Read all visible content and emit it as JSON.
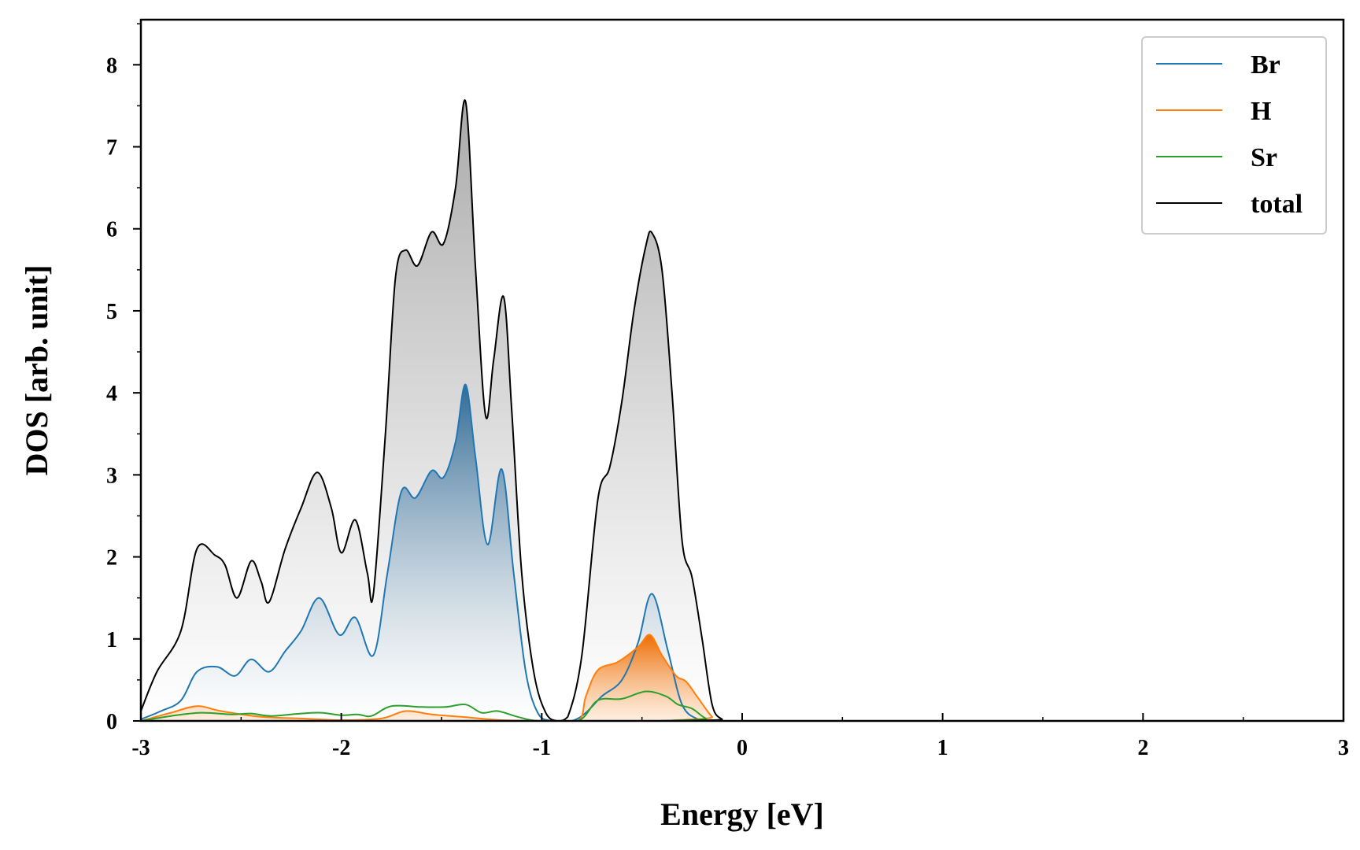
{
  "chart_data": {
    "type": "line",
    "xlabel": "Energy [eV]",
    "ylabel": "DOS [arb. unit]",
    "xlim": [
      -3,
      3
    ],
    "ylim": [
      0,
      8.55
    ],
    "x_ticks": [
      -3,
      -2,
      -1,
      0,
      1,
      2,
      3
    ],
    "x_tick_labels": [
      "-3",
      "-2",
      "-1",
      "0",
      "1",
      "2",
      "3"
    ],
    "y_ticks": [
      0,
      1,
      2,
      3,
      4,
      5,
      6,
      7,
      8
    ],
    "y_tick_labels": [
      "0",
      "1",
      "2",
      "3",
      "4",
      "5",
      "6",
      "7",
      "8"
    ],
    "grid": false,
    "legend_position": "top-right",
    "series": [
      {
        "name": "Br",
        "color": "#1f77b4",
        "fill": true,
        "points": [
          [
            -3.0,
            0.02
          ],
          [
            -2.9,
            0.12
          ],
          [
            -2.8,
            0.25
          ],
          [
            -2.72,
            0.6
          ],
          [
            -2.62,
            0.66
          ],
          [
            -2.53,
            0.55
          ],
          [
            -2.45,
            0.75
          ],
          [
            -2.36,
            0.6
          ],
          [
            -2.28,
            0.85
          ],
          [
            -2.2,
            1.1
          ],
          [
            -2.11,
            1.5
          ],
          [
            -2.01,
            1.05
          ],
          [
            -1.93,
            1.26
          ],
          [
            -1.84,
            0.8
          ],
          [
            -1.77,
            1.8
          ],
          [
            -1.7,
            2.8
          ],
          [
            -1.63,
            2.72
          ],
          [
            -1.55,
            3.05
          ],
          [
            -1.49,
            2.97
          ],
          [
            -1.43,
            3.4
          ],
          [
            -1.38,
            4.1
          ],
          [
            -1.33,
            3.2
          ],
          [
            -1.27,
            2.15
          ],
          [
            -1.2,
            3.07
          ],
          [
            -1.14,
            1.8
          ],
          [
            -1.08,
            0.6
          ],
          [
            -1.02,
            0.1
          ],
          [
            -0.95,
            0.0
          ],
          [
            -0.85,
            0.0
          ],
          [
            -0.78,
            0.1
          ],
          [
            -0.7,
            0.3
          ],
          [
            -0.6,
            0.5
          ],
          [
            -0.52,
            0.95
          ],
          [
            -0.45,
            1.55
          ],
          [
            -0.37,
            0.85
          ],
          [
            -0.3,
            0.2
          ],
          [
            -0.22,
            0.02
          ],
          [
            -0.15,
            0.0
          ],
          [
            3.0,
            0.0
          ]
        ]
      },
      {
        "name": "H",
        "color": "#ff7f0e",
        "fill": true,
        "points": [
          [
            -3.0,
            0.0
          ],
          [
            -2.85,
            0.1
          ],
          [
            -2.72,
            0.18
          ],
          [
            -2.6,
            0.12
          ],
          [
            -2.4,
            0.05
          ],
          [
            -2.2,
            0.03
          ],
          [
            -2.0,
            0.01
          ],
          [
            -1.8,
            0.03
          ],
          [
            -1.68,
            0.12
          ],
          [
            -1.55,
            0.08
          ],
          [
            -1.4,
            0.05
          ],
          [
            -1.2,
            0.01
          ],
          [
            -1.0,
            0.0
          ],
          [
            -0.82,
            0.0
          ],
          [
            -0.78,
            0.3
          ],
          [
            -0.72,
            0.62
          ],
          [
            -0.62,
            0.72
          ],
          [
            -0.52,
            0.9
          ],
          [
            -0.46,
            1.05
          ],
          [
            -0.4,
            0.8
          ],
          [
            -0.33,
            0.55
          ],
          [
            -0.28,
            0.48
          ],
          [
            -0.22,
            0.28
          ],
          [
            -0.15,
            0.05
          ],
          [
            -0.1,
            0.0
          ],
          [
            3.0,
            0.0
          ]
        ]
      },
      {
        "name": "Sr",
        "color": "#2ca02c",
        "fill": false,
        "points": [
          [
            -3.0,
            0.0
          ],
          [
            -2.85,
            0.06
          ],
          [
            -2.7,
            0.1
          ],
          [
            -2.55,
            0.08
          ],
          [
            -2.45,
            0.09
          ],
          [
            -2.35,
            0.06
          ],
          [
            -2.2,
            0.09
          ],
          [
            -2.1,
            0.1
          ],
          [
            -2.0,
            0.07
          ],
          [
            -1.92,
            0.08
          ],
          [
            -1.85,
            0.06
          ],
          [
            -1.75,
            0.18
          ],
          [
            -1.6,
            0.17
          ],
          [
            -1.48,
            0.17
          ],
          [
            -1.38,
            0.2
          ],
          [
            -1.3,
            0.1
          ],
          [
            -1.22,
            0.12
          ],
          [
            -1.12,
            0.05
          ],
          [
            -1.02,
            0.0
          ],
          [
            -0.82,
            0.0
          ],
          [
            -0.72,
            0.25
          ],
          [
            -0.6,
            0.27
          ],
          [
            -0.48,
            0.36
          ],
          [
            -0.38,
            0.3
          ],
          [
            -0.32,
            0.2
          ],
          [
            -0.25,
            0.15
          ],
          [
            -0.18,
            0.03
          ],
          [
            -0.1,
            0.0
          ],
          [
            3.0,
            0.0
          ]
        ]
      },
      {
        "name": "total",
        "color": "#000000",
        "fill": true,
        "points": [
          [
            -3.0,
            0.12
          ],
          [
            -2.92,
            0.6
          ],
          [
            -2.8,
            1.1
          ],
          [
            -2.72,
            2.1
          ],
          [
            -2.63,
            2.02
          ],
          [
            -2.58,
            1.9
          ],
          [
            -2.52,
            1.5
          ],
          [
            -2.45,
            1.95
          ],
          [
            -2.4,
            1.7
          ],
          [
            -2.36,
            1.45
          ],
          [
            -2.28,
            2.1
          ],
          [
            -2.2,
            2.6
          ],
          [
            -2.12,
            3.03
          ],
          [
            -2.05,
            2.6
          ],
          [
            -2.0,
            2.05
          ],
          [
            -1.93,
            2.45
          ],
          [
            -1.87,
            1.8
          ],
          [
            -1.84,
            1.55
          ],
          [
            -1.78,
            3.5
          ],
          [
            -1.73,
            5.4
          ],
          [
            -1.68,
            5.74
          ],
          [
            -1.62,
            5.55
          ],
          [
            -1.55,
            5.96
          ],
          [
            -1.49,
            5.82
          ],
          [
            -1.43,
            6.5
          ],
          [
            -1.38,
            7.55
          ],
          [
            -1.33,
            5.5
          ],
          [
            -1.28,
            3.72
          ],
          [
            -1.24,
            4.4
          ],
          [
            -1.19,
            5.17
          ],
          [
            -1.15,
            3.8
          ],
          [
            -1.1,
            1.8
          ],
          [
            -1.04,
            0.6
          ],
          [
            -0.98,
            0.1
          ],
          [
            -0.92,
            0.0
          ],
          [
            -0.87,
            0.05
          ],
          [
            -0.8,
            0.8
          ],
          [
            -0.72,
            2.7
          ],
          [
            -0.66,
            3.1
          ],
          [
            -0.6,
            3.9
          ],
          [
            -0.54,
            5.0
          ],
          [
            -0.48,
            5.8
          ],
          [
            -0.45,
            5.95
          ],
          [
            -0.4,
            5.5
          ],
          [
            -0.35,
            4.0
          ],
          [
            -0.3,
            2.2
          ],
          [
            -0.25,
            1.75
          ],
          [
            -0.2,
            1.0
          ],
          [
            -0.15,
            0.2
          ],
          [
            -0.1,
            0.02
          ],
          [
            -0.05,
            0.0
          ],
          [
            3.0,
            0.0
          ]
        ]
      }
    ]
  }
}
